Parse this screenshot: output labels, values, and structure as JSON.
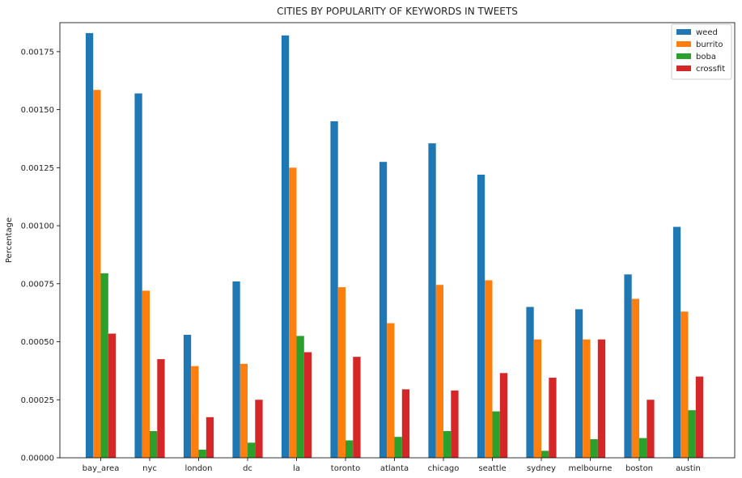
{
  "chart_data": {
    "type": "bar",
    "title": "CITIES BY POPULARITY OF KEYWORDS IN TWEETS",
    "xlabel": "",
    "ylabel": "Percentage",
    "ylim": [
      0,
      0.001875
    ],
    "yticks": [
      "0.00000",
      "0.00025",
      "0.00050",
      "0.00075",
      "0.00100",
      "0.00125",
      "0.00150",
      "0.00175"
    ],
    "legend_position": "top-right",
    "grid": false,
    "categories": [
      "bay_area",
      "nyc",
      "london",
      "dc",
      "la",
      "toronto",
      "atlanta",
      "chicago",
      "seattle",
      "sydney",
      "melbourne",
      "boston",
      "austin"
    ],
    "series": [
      {
        "name": "weed",
        "color": "#1f77b4",
        "values": [
          0.00183,
          0.00157,
          0.00053,
          0.00076,
          0.00182,
          0.00145,
          0.001275,
          0.001355,
          0.00122,
          0.00065,
          0.00064,
          0.00079,
          0.000995
        ]
      },
      {
        "name": "burrito",
        "color": "#ff7f0e",
        "values": [
          0.001585,
          0.00072,
          0.000395,
          0.000405,
          0.00125,
          0.000735,
          0.00058,
          0.000745,
          0.000765,
          0.00051,
          0.00051,
          0.000685,
          0.00063
        ]
      },
      {
        "name": "boba",
        "color": "#2ca02c",
        "values": [
          0.000795,
          0.000115,
          3.5e-05,
          6.5e-05,
          0.000525,
          7.5e-05,
          9e-05,
          0.000115,
          0.0002,
          3e-05,
          8e-05,
          8.5e-05,
          0.000205
        ]
      },
      {
        "name": "crossfit",
        "color": "#d62728",
        "values": [
          0.000535,
          0.000425,
          0.000175,
          0.00025,
          0.000455,
          0.000435,
          0.000295,
          0.00029,
          0.000365,
          0.000345,
          0.00051,
          0.00025,
          0.00035
        ]
      }
    ]
  }
}
